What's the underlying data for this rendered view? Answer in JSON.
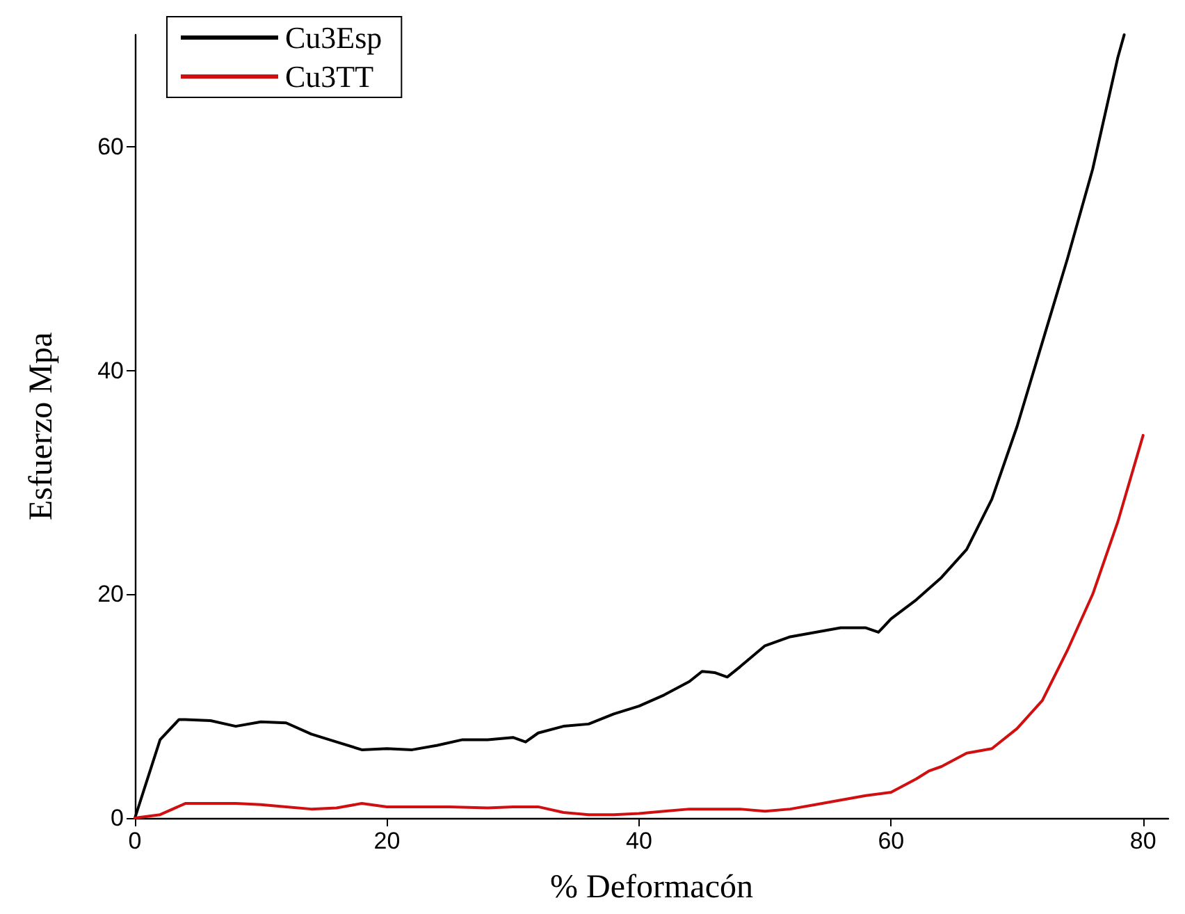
{
  "chart_data": {
    "type": "line",
    "xlabel": "% Deformacón",
    "ylabel": "Esfuerzo Mpa",
    "xlim": [
      0,
      82
    ],
    "ylim": [
      0,
      70
    ],
    "xticks": [
      0,
      20,
      40,
      60,
      80
    ],
    "yticks": [
      0,
      20,
      40,
      60
    ],
    "grid": false,
    "legend": "top left",
    "marker": "none",
    "line_style": "solid",
    "series": [
      {
        "name": "Cu3Esp",
        "color": "#000000",
        "x": [
          0,
          1,
          2,
          3.5,
          4,
          6,
          8,
          10,
          12,
          14,
          16,
          18,
          20,
          22,
          24,
          26,
          28,
          30,
          31,
          32,
          34,
          36,
          38,
          40,
          42,
          44,
          45,
          46,
          47,
          48,
          50,
          52,
          54,
          56,
          58,
          59,
          60,
          62,
          64,
          66,
          68,
          70,
          72,
          74,
          76,
          78,
          78.5
        ],
        "values": [
          0,
          3.5,
          7,
          8.8,
          8.8,
          8.7,
          8.2,
          8.6,
          8.5,
          7.5,
          6.8,
          6.1,
          6.2,
          6.1,
          6.5,
          7.0,
          7.0,
          7.2,
          6.8,
          7.6,
          8.2,
          8.4,
          9.3,
          10.0,
          11.0,
          12.2,
          13.1,
          13.0,
          12.6,
          13.5,
          15.4,
          16.2,
          16.6,
          17.0,
          17.0,
          16.6,
          17.8,
          19.5,
          21.5,
          24.0,
          28.5,
          35,
          42.5,
          50,
          58,
          68,
          70
        ]
      },
      {
        "name": "Cu3TT",
        "color": "#d01010",
        "x": [
          0,
          2,
          4,
          6,
          8,
          10,
          12,
          14,
          16,
          18,
          20,
          22,
          25,
          28,
          30,
          32,
          34,
          36,
          38,
          40,
          42,
          44,
          46,
          48,
          50,
          52,
          54,
          56,
          58,
          60,
          62,
          63,
          64,
          66,
          68,
          70,
          72,
          74,
          76,
          78,
          80
        ],
        "values": [
          0,
          0.3,
          1.3,
          1.3,
          1.3,
          1.2,
          1.0,
          0.8,
          0.9,
          1.3,
          1.0,
          1.0,
          1.0,
          0.9,
          1.0,
          1.0,
          0.5,
          0.3,
          0.3,
          0.4,
          0.6,
          0.8,
          0.8,
          0.8,
          0.6,
          0.8,
          1.2,
          1.6,
          2.0,
          2.3,
          3.5,
          4.2,
          4.6,
          5.8,
          6.2,
          8.0,
          10.5,
          15,
          20,
          26.5,
          34.2
        ]
      }
    ]
  }
}
